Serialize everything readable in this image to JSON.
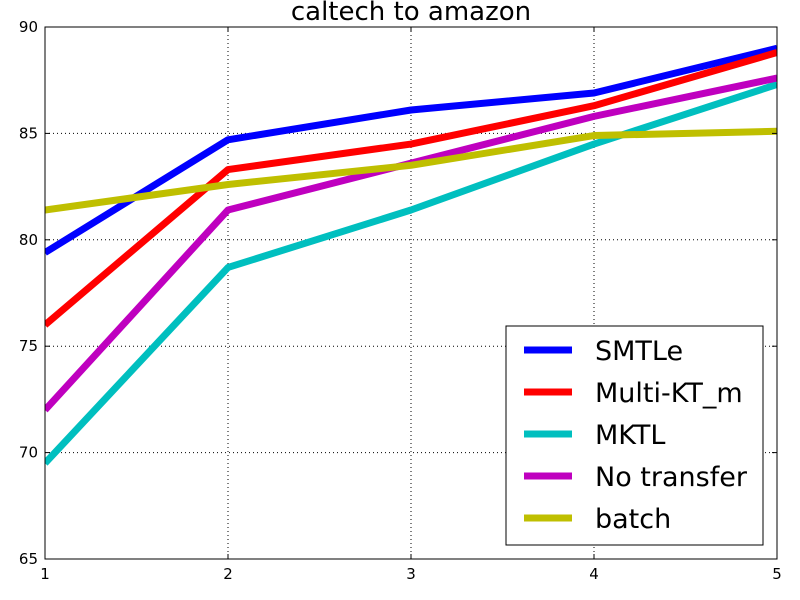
{
  "chart_data": {
    "type": "line",
    "title": "caltech to amazon",
    "xlabel": "",
    "ylabel": "",
    "x": [
      1,
      2,
      3,
      4,
      5
    ],
    "xlim": [
      1,
      5
    ],
    "ylim": [
      65,
      90
    ],
    "xticks": [
      "1",
      "2",
      "3",
      "4",
      "5"
    ],
    "yticks": [
      "65",
      "70",
      "75",
      "80",
      "85",
      "90"
    ],
    "grid": true,
    "legend_position": "lower-right",
    "series": [
      {
        "name": "SMTLe",
        "color": "#0000ff",
        "values": [
          79.4,
          84.7,
          86.1,
          86.9,
          89.0
        ]
      },
      {
        "name": "Multi-KT_m",
        "color": "#ff0000",
        "values": [
          76.0,
          83.3,
          84.5,
          86.3,
          88.8
        ]
      },
      {
        "name": "MKTL",
        "color": "#00bfbf",
        "values": [
          69.5,
          78.7,
          81.4,
          84.5,
          87.3
        ]
      },
      {
        "name": "No transfer",
        "color": "#bf00bf",
        "values": [
          72.0,
          81.4,
          83.6,
          85.8,
          87.6
        ]
      },
      {
        "name": "batch",
        "color": "#bfbf00",
        "values": [
          81.4,
          82.6,
          83.5,
          84.9,
          85.1
        ]
      }
    ]
  }
}
